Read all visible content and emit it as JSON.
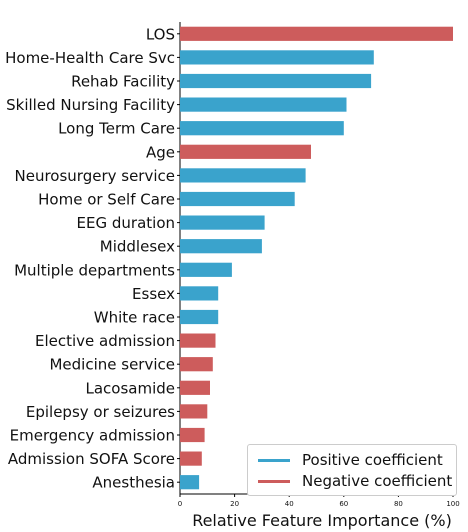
{
  "chart_data": {
    "type": "bar",
    "orientation": "horizontal",
    "xlabel": "Relative Feature Importance (%)",
    "xlim": [
      0,
      100
    ],
    "x_ticks": [
      0,
      20,
      40,
      60,
      80,
      100
    ],
    "grid": false,
    "legend_position": "bottom-right",
    "legend": [
      {
        "name": "Positive coefficient",
        "color": "#3aa3cc"
      },
      {
        "name": "Negative coefficient",
        "color": "#cd5c5c"
      }
    ],
    "features": [
      {
        "label": "LOS",
        "value": 100,
        "sign": "negative"
      },
      {
        "label": "Home-Health Care Svc",
        "value": 71,
        "sign": "positive"
      },
      {
        "label": "Rehab Facility",
        "value": 70,
        "sign": "positive"
      },
      {
        "label": "Skilled Nursing Facility",
        "value": 61,
        "sign": "positive"
      },
      {
        "label": "Long Term Care",
        "value": 60,
        "sign": "positive"
      },
      {
        "label": "Age",
        "value": 48,
        "sign": "negative"
      },
      {
        "label": "Neurosurgery service",
        "value": 46,
        "sign": "positive"
      },
      {
        "label": "Home or Self Care",
        "value": 42,
        "sign": "positive"
      },
      {
        "label": "EEG duration",
        "value": 31,
        "sign": "positive"
      },
      {
        "label": "Middlesex",
        "value": 30,
        "sign": "positive"
      },
      {
        "label": "Multiple departments",
        "value": 19,
        "sign": "positive"
      },
      {
        "label": "Essex",
        "value": 14,
        "sign": "positive"
      },
      {
        "label": "White race",
        "value": 14,
        "sign": "positive"
      },
      {
        "label": "Elective admission",
        "value": 13,
        "sign": "negative"
      },
      {
        "label": "Medicine service",
        "value": 12,
        "sign": "negative"
      },
      {
        "label": "Lacosamide",
        "value": 11,
        "sign": "negative"
      },
      {
        "label": "Epilepsy or seizures",
        "value": 10,
        "sign": "negative"
      },
      {
        "label": "Emergency admission",
        "value": 9,
        "sign": "negative"
      },
      {
        "label": "Admission SOFA Score",
        "value": 8,
        "sign": "negative"
      },
      {
        "label": "Anesthesia",
        "value": 7,
        "sign": "positive"
      }
    ]
  }
}
